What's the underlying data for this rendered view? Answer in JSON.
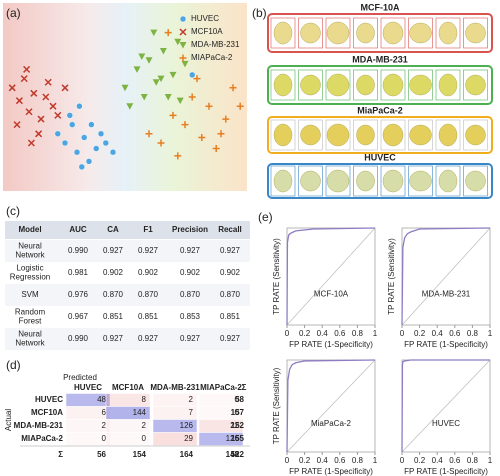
{
  "panel_labels": [
    "(a)",
    "(b)",
    "(c)",
    "(d)",
    "(e)"
  ],
  "chart_data": [
    {
      "type": "scatter",
      "xlim": [
        0,
        100
      ],
      "ylim": [
        0,
        100
      ],
      "legend": "upper right",
      "series": [
        {
          "name": "HUVEC",
          "color": "#4da6e0",
          "marker": "circle",
          "x": [
            22,
            25,
            28,
            30,
            33,
            35,
            38,
            40,
            27,
            32,
            36,
            42,
            45,
            31,
            78
          ],
          "values": [
            30,
            25,
            35,
            20,
            28,
            15,
            22,
            30,
            40,
            12,
            35,
            25,
            20,
            45,
            62
          ]
        },
        {
          "name": "MCF10A",
          "color": "#c0392b",
          "marker": "x",
          "x": [
            3,
            6,
            8,
            10,
            12,
            15,
            18,
            20,
            5,
            9,
            14,
            17,
            22,
            11,
            25
          ],
          "values": [
            55,
            48,
            60,
            42,
            52,
            38,
            58,
            45,
            35,
            65,
            30,
            50,
            40,
            25,
            55
          ]
        },
        {
          "name": "MDA-MB-231",
          "color": "#7cb342",
          "marker": "triangle",
          "x": [
            50,
            55,
            58,
            60,
            63,
            66,
            70,
            72,
            52,
            62,
            68,
            75,
            57,
            65,
            73
          ],
          "values": [
            55,
            65,
            50,
            70,
            58,
            75,
            62,
            80,
            45,
            85,
            50,
            68,
            72,
            60,
            48
          ]
        },
        {
          "name": "MIAPaCa-2",
          "color": "#e67e22",
          "marker": "plus",
          "x": [
            60,
            65,
            70,
            75,
            78,
            82,
            85,
            88,
            92,
            95,
            72,
            80,
            90,
            68,
            98
          ],
          "values": [
            30,
            25,
            40,
            35,
            50,
            28,
            45,
            22,
            38,
            55,
            18,
            60,
            30,
            85,
            45
          ]
        }
      ]
    },
    {
      "type": "line",
      "label": "MCF-10A",
      "x_label": "FP RATE (1-Specificity)",
      "y_label": "TP RATE (Sensitivity)",
      "xlim": [
        0,
        1
      ],
      "ylim": [
        0,
        1
      ],
      "xticks": [
        0,
        0.2,
        0.4,
        0.6,
        0.8,
        1
      ],
      "color": "#8e7cc3",
      "x": [
        0,
        0.005,
        0.02,
        0.05,
        0.1,
        0.3,
        1
      ],
      "values": [
        0,
        0.85,
        0.93,
        0.95,
        0.97,
        0.99,
        1
      ]
    },
    {
      "type": "line",
      "label": "MDA-MB-231",
      "x_label": "FP RATE (1-Specificity)",
      "y_label": "TP RATE (Sensitivity)",
      "xlim": [
        0,
        1
      ],
      "ylim": [
        0,
        1
      ],
      "xticks": [
        0,
        0.2,
        0.4,
        0.6,
        0.8,
        1
      ],
      "color": "#8e7cc3",
      "x": [
        0,
        0.01,
        0.03,
        0.06,
        0.1,
        0.2,
        1
      ],
      "values": [
        0,
        0.8,
        0.9,
        0.94,
        0.96,
        0.99,
        1
      ]
    },
    {
      "type": "line",
      "label": "MiaPaCa-2",
      "x_label": "FP RATE (1-Specificity)",
      "y_label": "TP RATE (Sensitivity)",
      "xlim": [
        0,
        1
      ],
      "ylim": [
        0,
        1
      ],
      "xticks": [
        0,
        0.2,
        0.4,
        0.6,
        0.8,
        1
      ],
      "color": "#8e7cc3",
      "x": [
        0,
        0.01,
        0.03,
        0.06,
        0.1,
        0.2,
        1
      ],
      "values": [
        0,
        0.78,
        0.9,
        0.95,
        0.97,
        0.99,
        1
      ]
    },
    {
      "type": "line",
      "label": "HUVEC",
      "x_label": "FP RATE (1-Specificity)",
      "xlim": [
        0,
        1
      ],
      "ylim": [
        0,
        1
      ],
      "xticks": [
        0,
        0.2,
        0.4,
        0.6,
        0.8,
        1
      ],
      "color": "#8e7cc3",
      "x": [
        0,
        0.005,
        0.01,
        0.03,
        0.1,
        1
      ],
      "values": [
        0,
        0.95,
        0.98,
        0.99,
        1,
        1
      ]
    }
  ],
  "cells": [
    {
      "title": "MCF-10A",
      "color": "#d9534f"
    },
    {
      "title": "MDA-MB-231",
      "color": "#4caf50"
    },
    {
      "title": "MiaPaCa-2",
      "color": "#f0ad1e"
    },
    {
      "title": "HUVEC",
      "color": "#3a87c8"
    }
  ],
  "table": {
    "header": [
      "Model",
      "AUC",
      "CA",
      "F1",
      "Precision",
      "Recall"
    ],
    "rows": [
      [
        "Neural Network",
        "0.990",
        "0.927",
        "0.927",
        "0.927",
        "0.927"
      ],
      [
        "Logistic Regression",
        "0.981",
        "0.902",
        "0.902",
        "0.902",
        "0.902"
      ],
      [
        "SVM",
        "0.976",
        "0.870",
        "0.870",
        "0.870",
        "0.870"
      ],
      [
        "Random Forest",
        "0.967",
        "0.851",
        "0.851",
        "0.853",
        "0.851"
      ],
      [
        "Neural Network",
        "0.990",
        "0.927",
        "0.927",
        "0.927",
        "0.927"
      ]
    ]
  },
  "confusion": {
    "predicted_label": "Predicted",
    "actual_label": "Actual",
    "columns": [
      "HUVEC",
      "MCF10A",
      "MDA-MB-231",
      "MIAPaCa-2",
      "Σ"
    ],
    "rows": [
      {
        "label": "HUVEC",
        "values": [
          48,
          8,
          2,
          0,
          58
        ]
      },
      {
        "label": "MCF10A",
        "values": [
          6,
          144,
          7,
          0,
          157
        ]
      },
      {
        "label": "MDA-MB-231",
        "values": [
          2,
          2,
          126,
          22,
          152
        ]
      },
      {
        "label": "MIAPaCa-2",
        "values": [
          0,
          0,
          29,
          126,
          155
        ]
      },
      {
        "label": "Σ",
        "values": [
          56,
          154,
          164,
          148,
          522
        ]
      }
    ]
  }
}
